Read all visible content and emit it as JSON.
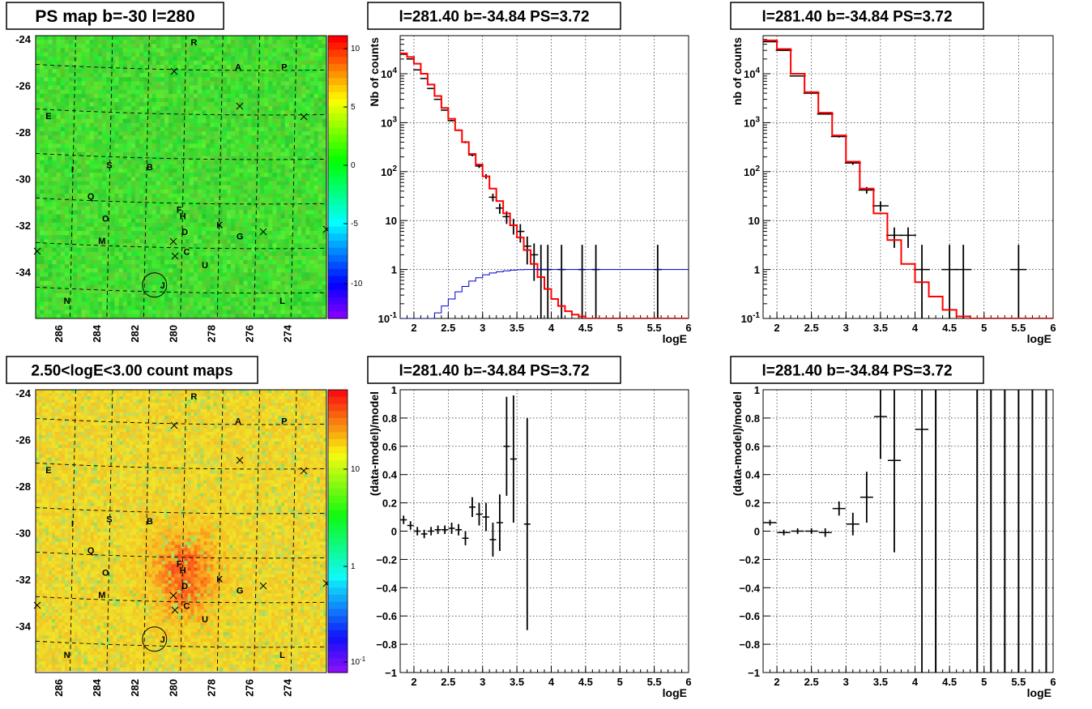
{
  "map_panels": [
    {
      "title": "PS map b=-30 l=280",
      "kind": "psmap",
      "y_ticks": [
        "-24",
        "-26",
        "-28",
        "-30",
        "-32",
        "-34"
      ],
      "x_ticks": [
        "286",
        "284",
        "282",
        "280",
        "278",
        "276",
        "274"
      ],
      "colorbar_ticks": [
        "10",
        "5",
        "0",
        "-5",
        "-10"
      ],
      "sources": [
        {
          "label": "R",
          "l": 279.4,
          "b": -23.9
        },
        {
          "label": "A",
          "l": 277.0,
          "b": -25.0
        },
        {
          "label": "P",
          "l": 274.5,
          "b": -25.0
        },
        {
          "label": "E",
          "l": 287.3,
          "b": -27.2
        },
        {
          "label": "I",
          "l": 286.0,
          "b": -29.6
        },
        {
          "label": "S",
          "l": 284.0,
          "b": -29.4
        },
        {
          "label": "B",
          "l": 281.8,
          "b": -29.5
        },
        {
          "label": "Q",
          "l": 285.0,
          "b": -30.8
        },
        {
          "label": "F",
          "l": 280.2,
          "b": -31.4
        },
        {
          "label": "H",
          "l": 280.0,
          "b": -31.7
        },
        {
          "label": "O",
          "l": 284.2,
          "b": -31.8
        },
        {
          "label": "K",
          "l": 278.0,
          "b": -32.1
        },
        {
          "label": "D",
          "l": 279.9,
          "b": -32.4
        },
        {
          "label": "G",
          "l": 276.9,
          "b": -32.6
        },
        {
          "label": "M",
          "l": 284.4,
          "b": -32.8
        },
        {
          "label": "C",
          "l": 279.8,
          "b": -33.3
        },
        {
          "label": "U",
          "l": 278.8,
          "b": -33.9
        },
        {
          "label": "J",
          "l": 281.1,
          "b": -34.8
        },
        {
          "label": "N",
          "l": 286.3,
          "b": -35.5
        },
        {
          "label": "L",
          "l": 274.6,
          "b": -35.5
        }
      ]
    },
    {
      "title": "2.50<logE<3.00 count maps",
      "kind": "countmap",
      "y_ticks": [
        "-24",
        "-26",
        "-28",
        "-30",
        "-32",
        "-34"
      ],
      "x_ticks": [
        "286",
        "284",
        "282",
        "280",
        "278",
        "276",
        "274"
      ],
      "colorbar_ticks": [
        "10",
        "1",
        "10^-1"
      ],
      "sources": [
        {
          "label": "R",
          "l": 279.4,
          "b": -23.9
        },
        {
          "label": "A",
          "l": 277.0,
          "b": -25.0
        },
        {
          "label": "P",
          "l": 274.5,
          "b": -25.0
        },
        {
          "label": "E",
          "l": 287.3,
          "b": -27.2
        },
        {
          "label": "I",
          "l": 286.0,
          "b": -29.6
        },
        {
          "label": "S",
          "l": 284.0,
          "b": -29.4
        },
        {
          "label": "B",
          "l": 281.8,
          "b": -29.5
        },
        {
          "label": "Q",
          "l": 285.0,
          "b": -30.8
        },
        {
          "label": "F",
          "l": 280.2,
          "b": -31.4
        },
        {
          "label": "H",
          "l": 280.0,
          "b": -31.7
        },
        {
          "label": "O",
          "l": 284.2,
          "b": -31.8
        },
        {
          "label": "K",
          "l": 278.0,
          "b": -32.1
        },
        {
          "label": "D",
          "l": 279.9,
          "b": -32.4
        },
        {
          "label": "G",
          "l": 276.9,
          "b": -32.6
        },
        {
          "label": "M",
          "l": 284.4,
          "b": -32.8
        },
        {
          "label": "C",
          "l": 279.8,
          "b": -33.3
        },
        {
          "label": "U",
          "l": 278.8,
          "b": -33.9
        },
        {
          "label": "J",
          "l": 281.1,
          "b": -34.8
        },
        {
          "label": "N",
          "l": 286.3,
          "b": -35.5
        },
        {
          "label": "L",
          "l": 274.6,
          "b": -35.5
        }
      ]
    }
  ],
  "chart_data": [
    {
      "type": "line",
      "title": "l=281.40 b=-34.84 PS=3.72",
      "xlabel": "logE",
      "ylabel": "Nb of counts",
      "log_y": true,
      "xlim": [
        1.8,
        6.0
      ],
      "ylim": [
        0.1,
        60000
      ],
      "x_ticks": [
        "2",
        "2.5",
        "3",
        "3.5",
        "4",
        "4.5",
        "5",
        "5.5",
        "6"
      ],
      "y_ticks": [
        "10^-1",
        "1",
        "10",
        "10^2",
        "10^3",
        "10^4"
      ],
      "grid": true,
      "series": [
        {
          "kind": "points",
          "color": "#000000",
          "x": [
            1.85,
            1.95,
            2.05,
            2.15,
            2.25,
            2.35,
            2.45,
            2.55,
            2.65,
            2.75,
            2.85,
            2.95,
            3.05,
            3.15,
            3.25,
            3.35,
            3.45,
            3.55,
            3.65,
            3.75,
            3.85,
            3.95,
            4.15,
            4.45,
            4.65,
            5.55
          ],
          "y": [
            25000,
            20000,
            12000,
            8000,
            5000,
            3000,
            1800,
            1100,
            700,
            400,
            220,
            130,
            80,
            30,
            18,
            12,
            8,
            6,
            3,
            2,
            1,
            1,
            1,
            1,
            1,
            1
          ]
        },
        {
          "kind": "step",
          "color": "#ff0000",
          "x": [
            1.8,
            1.9,
            2.0,
            2.1,
            2.2,
            2.3,
            2.4,
            2.5,
            2.6,
            2.7,
            2.8,
            2.9,
            3.0,
            3.1,
            3.2,
            3.3,
            3.4,
            3.5,
            3.6,
            3.7,
            3.8,
            3.9,
            4.0,
            4.1,
            4.2,
            4.3,
            4.4,
            4.5,
            6.0
          ],
          "y": [
            26000,
            22000,
            16000,
            10000,
            6000,
            3500,
            2000,
            1200,
            700,
            400,
            230,
            140,
            80,
            45,
            25,
            14,
            8,
            4.5,
            2.5,
            1.3,
            0.7,
            0.4,
            0.25,
            0.18,
            0.14,
            0.12,
            0.11,
            0.1,
            0.1
          ]
        },
        {
          "kind": "step",
          "color": "#0000cc",
          "x": [
            1.8,
            2.0,
            2.2,
            2.3,
            2.4,
            2.5,
            2.6,
            2.7,
            2.8,
            2.9,
            3.0,
            3.1,
            3.2,
            3.3,
            3.4,
            3.5,
            3.6,
            3.8,
            6.0
          ],
          "y": [
            0.1,
            0.1,
            0.1,
            0.13,
            0.18,
            0.25,
            0.35,
            0.45,
            0.58,
            0.68,
            0.78,
            0.85,
            0.9,
            0.94,
            0.97,
            0.99,
            1.0,
            1.0,
            1.0
          ]
        }
      ]
    },
    {
      "type": "line",
      "title": "l=281.40 b=-34.84 PS=3.72",
      "xlabel": "logE",
      "ylabel": "nb of counts",
      "log_y": true,
      "xlim": [
        1.8,
        6.0
      ],
      "ylim": [
        0.1,
        60000
      ],
      "x_ticks": [
        "2",
        "2.5",
        "3",
        "3.5",
        "4",
        "4.5",
        "5",
        "5.5",
        "6"
      ],
      "y_ticks": [
        "10^-1",
        "1",
        "10",
        "10^2",
        "10^3",
        "10^4"
      ],
      "grid": true,
      "series": [
        {
          "kind": "points",
          "color": "#000000",
          "x": [
            1.9,
            2.1,
            2.3,
            2.5,
            2.7,
            2.9,
            3.1,
            3.3,
            3.5,
            3.7,
            3.9,
            4.1,
            4.5,
            4.7,
            5.5
          ],
          "y": [
            45000,
            30000,
            9000,
            4000,
            1500,
            520,
            150,
            42,
            20,
            5,
            5,
            1,
            1,
            1,
            1
          ]
        },
        {
          "kind": "step",
          "color": "#ff0000",
          "x": [
            1.8,
            2.0,
            2.2,
            2.4,
            2.6,
            2.8,
            3.0,
            3.2,
            3.4,
            3.6,
            3.8,
            4.0,
            4.2,
            4.4,
            4.6,
            4.8,
            5.0,
            6.0
          ],
          "y": [
            48000,
            32000,
            10000,
            4200,
            1600,
            550,
            160,
            45,
            14,
            4,
            1.3,
            0.55,
            0.28,
            0.15,
            0.11,
            0.1,
            0.1,
            0.1
          ]
        }
      ]
    },
    {
      "type": "scatter",
      "title": "l=281.40 b=-34.84 PS=3.72",
      "xlabel": "logE",
      "ylabel": "(data-model)/model",
      "xlim": [
        1.8,
        6.0
      ],
      "ylim": [
        -1,
        1
      ],
      "x_ticks": [
        "2",
        "2.5",
        "3",
        "3.5",
        "4",
        "4.5",
        "5",
        "5.5",
        "6"
      ],
      "y_ticks": [
        "−1",
        "−0.8",
        "−0.6",
        "−0.4",
        "−0.2",
        "0",
        "0.2",
        "0.4",
        "0.6",
        "0.8",
        "1"
      ],
      "grid": true,
      "points": {
        "x": [
          1.85,
          1.95,
          2.05,
          2.15,
          2.25,
          2.35,
          2.45,
          2.55,
          2.65,
          2.75,
          2.85,
          2.95,
          3.05,
          3.15,
          3.25,
          3.35,
          3.45,
          3.65
        ],
        "y": [
          0.08,
          0.04,
          0.0,
          -0.02,
          0.0,
          0.01,
          0.01,
          0.02,
          0.01,
          -0.05,
          0.17,
          0.12,
          0.1,
          -0.06,
          0.06,
          0.6,
          0.51,
          0.05
        ],
        "err": [
          0.03,
          0.03,
          0.03,
          0.03,
          0.03,
          0.03,
          0.03,
          0.04,
          0.04,
          0.05,
          0.07,
          0.08,
          0.1,
          0.12,
          0.2,
          0.35,
          0.45,
          0.75
        ]
      }
    },
    {
      "type": "scatter",
      "title": "l=281.40 b=-34.84 PS=3.72",
      "xlabel": "logE",
      "ylabel": "(data-model)/model",
      "xlim": [
        1.8,
        6.0
      ],
      "ylim": [
        -1,
        1
      ],
      "x_ticks": [
        "2",
        "2.5",
        "3",
        "3.5",
        "4",
        "4.5",
        "5",
        "5.5",
        "6"
      ],
      "y_ticks": [
        "−1",
        "−0.8",
        "−0.6",
        "−0.4",
        "−0.2",
        "0",
        "0.2",
        "0.4",
        "0.6",
        "0.8",
        "1"
      ],
      "grid": true,
      "points": {
        "x": [
          1.9,
          2.1,
          2.3,
          2.5,
          2.7,
          2.9,
          3.1,
          3.3,
          3.5,
          3.7,
          4.1
        ],
        "y": [
          0.06,
          -0.01,
          0.0,
          0.0,
          -0.01,
          0.16,
          0.05,
          0.24,
          0.81,
          0.5,
          0.72
        ],
        "err": [
          0.02,
          0.02,
          0.02,
          0.02,
          0.03,
          0.05,
          0.08,
          0.18,
          0.3,
          0.65,
          1.8
        ]
      },
      "full_bars_x": [
        4.3,
        4.9,
        5.1,
        5.3,
        5.5,
        5.7,
        5.9
      ]
    }
  ]
}
